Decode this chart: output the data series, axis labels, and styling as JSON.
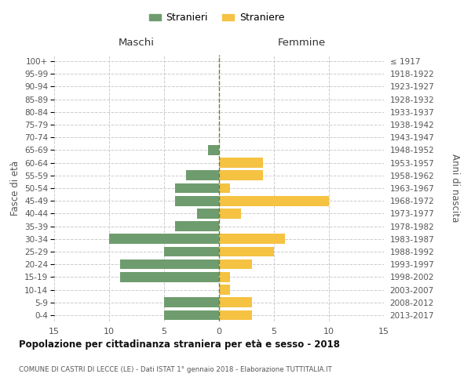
{
  "age_groups": [
    "0-4",
    "5-9",
    "10-14",
    "15-19",
    "20-24",
    "25-29",
    "30-34",
    "35-39",
    "40-44",
    "45-49",
    "50-54",
    "55-59",
    "60-64",
    "65-69",
    "70-74",
    "75-79",
    "80-84",
    "85-89",
    "90-94",
    "95-99",
    "100+"
  ],
  "birth_years": [
    "2013-2017",
    "2008-2012",
    "2003-2007",
    "1998-2002",
    "1993-1997",
    "1988-1992",
    "1983-1987",
    "1978-1982",
    "1973-1977",
    "1968-1972",
    "1963-1967",
    "1958-1962",
    "1953-1957",
    "1948-1952",
    "1943-1947",
    "1938-1942",
    "1933-1937",
    "1928-1932",
    "1923-1927",
    "1918-1922",
    "≤ 1917"
  ],
  "males": [
    5,
    5,
    0,
    9,
    9,
    5,
    10,
    4,
    2,
    4,
    4,
    3,
    0,
    1,
    0,
    0,
    0,
    0,
    0,
    0,
    0
  ],
  "females": [
    3,
    3,
    1,
    1,
    3,
    5,
    6,
    0,
    2,
    10,
    1,
    4,
    4,
    0,
    0,
    0,
    0,
    0,
    0,
    0,
    0
  ],
  "male_color": "#6e9c6e",
  "female_color": "#f5c242",
  "title": "Popolazione per cittadinanza straniera per età e sesso - 2018",
  "subtitle": "COMUNE DI CASTRI DI LECCE (LE) - Dati ISTAT 1° gennaio 2018 - Elaborazione TUTTITALIA.IT",
  "ylabel_left": "Fasce di età",
  "ylabel_right": "Anni di nascita",
  "xlabel_left": "Maschi",
  "xlabel_right": "Femmine",
  "legend_stranieri": "Stranieri",
  "legend_straniere": "Straniere",
  "xlim": 15,
  "bg_color": "#ffffff",
  "grid_color": "#cccccc",
  "bar_height": 0.78
}
